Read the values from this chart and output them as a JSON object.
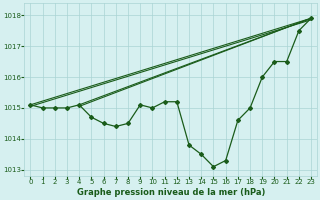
{
  "hours": [
    0,
    1,
    2,
    3,
    4,
    5,
    6,
    7,
    8,
    9,
    10,
    11,
    12,
    13,
    14,
    15,
    16,
    17,
    18,
    19,
    20,
    21,
    22,
    23
  ],
  "pressure": [
    1015.1,
    1015.0,
    1015.0,
    1015.0,
    1015.1,
    1014.7,
    1014.5,
    1014.4,
    1014.5,
    1015.1,
    1015.0,
    1015.2,
    1015.2,
    1013.8,
    1013.5,
    1013.1,
    1013.3,
    1014.6,
    1015.0,
    1016.0,
    1016.5,
    1016.5,
    1017.5,
    1017.9
  ],
  "env_lines": [
    {
      "x": [
        0,
        23
      ],
      "y": [
        1015.1,
        1017.9
      ]
    },
    {
      "x": [
        0,
        23
      ],
      "y": [
        1015.1,
        1017.9
      ]
    },
    {
      "x": [
        4,
        23
      ],
      "y": [
        1015.1,
        1017.9
      ]
    },
    {
      "x": [
        4,
        23
      ],
      "y": [
        1015.1,
        1017.9
      ]
    }
  ],
  "ylim": [
    1012.8,
    1018.4
  ],
  "yticks": [
    1013,
    1014,
    1015,
    1016,
    1017,
    1018
  ],
  "xtick_labels": [
    "0",
    "1",
    "2",
    "3",
    "4",
    "5",
    "6",
    "7",
    "8",
    "9",
    "10",
    "11",
    "12",
    "13",
    "14",
    "15",
    "16",
    "17",
    "18",
    "19",
    "20",
    "21",
    "22",
    "23"
  ],
  "line_color": "#1a5c1a",
  "bg_color": "#d6f0f0",
  "grid_color": "#aad4d4",
  "xlabel": "Graphe pression niveau de la mer (hPa)",
  "xlabel_color": "#1a5c1a",
  "xlabel_fontsize": 6.0,
  "tick_fontsize": 5.0,
  "marker": "D",
  "markersize": 2.0,
  "linewidth": 0.9
}
